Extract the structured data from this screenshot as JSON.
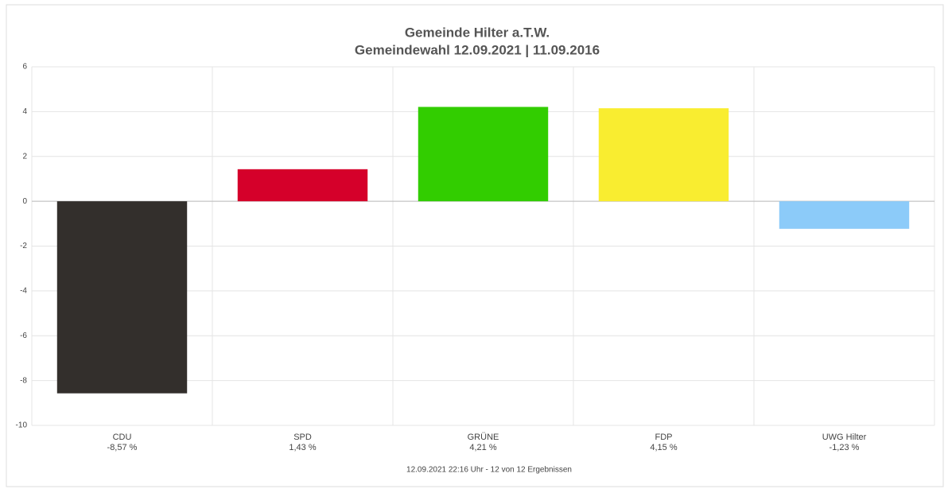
{
  "chart_data": {
    "type": "bar",
    "title": "Gemeinde Hilter a.T.W.",
    "subtitle": "Gemeindewahl 12.09.2021  | 11.09.2016",
    "footer": "12.09.2021 22:16 Uhr - 12 von 12 Ergebnissen",
    "categories": [
      "CDU",
      "SPD",
      "GRÜNE",
      "FDP",
      "UWG Hilter"
    ],
    "values": [
      -8.57,
      1.43,
      4.21,
      4.15,
      -1.23
    ],
    "value_labels": [
      "-8,57 %",
      "1,43 %",
      "4,21 %",
      "4,15 %",
      "-1,23 %"
    ],
    "colors": [
      "#332f2c",
      "#d5002a",
      "#32cd00",
      "#f9ed30",
      "#8ccbf9"
    ],
    "ylim": [
      -10,
      6
    ],
    "yticks": [
      -10,
      -8,
      -6,
      -4,
      -2,
      0,
      2,
      4,
      6
    ],
    "grid": true
  }
}
